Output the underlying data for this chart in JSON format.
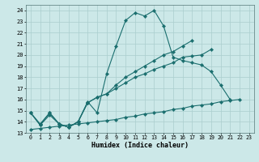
{
  "title": "",
  "xlabel": "Humidex (Indice chaleur)",
  "ylabel": "",
  "bg_color": "#cce8e8",
  "grid_color": "#aacece",
  "line_color": "#1a6e6e",
  "xlim": [
    -0.5,
    23.5
  ],
  "ylim": [
    13,
    24.5
  ],
  "yticks": [
    13,
    14,
    15,
    16,
    17,
    18,
    19,
    20,
    21,
    22,
    23,
    24
  ],
  "xticks": [
    0,
    1,
    2,
    3,
    4,
    5,
    6,
    7,
    8,
    9,
    10,
    11,
    12,
    13,
    14,
    15,
    16,
    17,
    18,
    19,
    20,
    21,
    22,
    23
  ],
  "line1_y": [
    14.8,
    13.7,
    14.6,
    13.8,
    13.5,
    14.0,
    15.8,
    14.8,
    18.3,
    20.8,
    23.1,
    23.8,
    23.5,
    24.0,
    22.6,
    19.8,
    19.5,
    19.3,
    19.1,
    18.5,
    17.3,
    16.0,
    null,
    null
  ],
  "line2_y": [
    14.8,
    13.7,
    14.8,
    13.8,
    13.5,
    14.0,
    15.7,
    16.2,
    16.5,
    17.0,
    17.5,
    18.0,
    18.3,
    18.7,
    19.0,
    19.3,
    19.8,
    19.9,
    20.0,
    20.5,
    null,
    null,
    null,
    null
  ],
  "line3_y": [
    14.8,
    13.8,
    14.8,
    13.8,
    13.5,
    14.0,
    15.7,
    16.2,
    16.5,
    17.3,
    18.0,
    18.5,
    19.0,
    19.5,
    20.0,
    20.3,
    20.8,
    21.3,
    null,
    null,
    null,
    null,
    null,
    null
  ],
  "line4_y": [
    13.3,
    13.4,
    13.5,
    13.6,
    13.7,
    13.8,
    13.9,
    14.0,
    14.1,
    14.2,
    14.4,
    14.5,
    14.7,
    14.8,
    14.9,
    15.1,
    15.2,
    15.4,
    15.5,
    15.6,
    15.8,
    15.9,
    16.0,
    null
  ]
}
